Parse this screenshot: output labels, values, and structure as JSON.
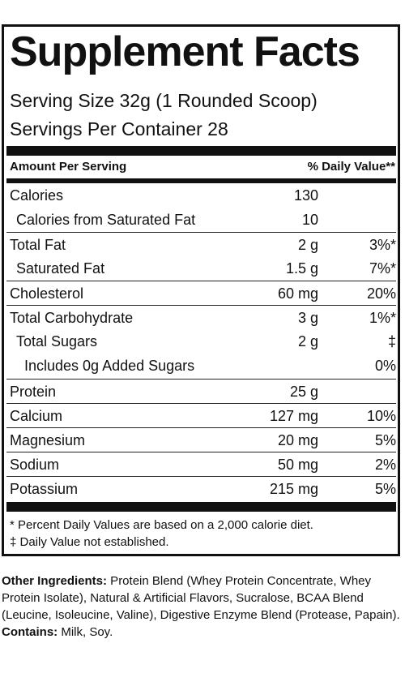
{
  "title": "Supplement Facts",
  "serving_size": "Serving Size 32g (1 Rounded Scoop)",
  "servings_per_container": "Servings Per Container  28",
  "header": {
    "amount_per_serving": "Amount Per Serving",
    "daily_value": "% Daily Value**"
  },
  "rows": [
    {
      "name": "Calories",
      "amount": "130",
      "dv": ""
    },
    {
      "name": "Calories from Saturated Fat",
      "amount": "10",
      "dv": ""
    },
    {
      "name": "Total Fat",
      "amount": "2 g",
      "dv": "3%*"
    },
    {
      "name": "Saturated Fat",
      "amount": "1.5 g",
      "dv": "7%*"
    },
    {
      "name": "Cholesterol",
      "amount": "60 mg",
      "dv": "20%"
    },
    {
      "name": "Total Carbohydrate",
      "amount": "3 g",
      "dv": "1%*"
    },
    {
      "name": "Total Sugars",
      "amount": "2 g",
      "dv": "‡"
    },
    {
      "name": "Includes 0g Added Sugars",
      "amount": "",
      "dv": "0%"
    },
    {
      "name": "Protein",
      "amount": "25 g",
      "dv": ""
    },
    {
      "name": "Calcium",
      "amount": "127 mg",
      "dv": "10%"
    },
    {
      "name": "Magnesium",
      "amount": "20 mg",
      "dv": "5%"
    },
    {
      "name": "Sodium",
      "amount": "50 mg",
      "dv": "2%"
    },
    {
      "name": "Potassium",
      "amount": "215 mg",
      "dv": "5%"
    }
  ],
  "footnotes": {
    "percent_dv": "* Percent Daily Values are based on a 2,000 calorie diet.",
    "not_established": "‡ Daily Value not established."
  },
  "other_ingredients": {
    "label": "Other Ingredients:",
    "text": " Protein Blend (Whey Protein Concentrate, Whey Protein Isolate), Natural & Artificial Flavors, Sucralose, BCAA Blend (Leucine, Isoleucine, Valine), Digestive Enzyme Blend (Protease, Papain)."
  },
  "contains": {
    "label": "Contains:",
    "text": " Milk, Soy."
  }
}
